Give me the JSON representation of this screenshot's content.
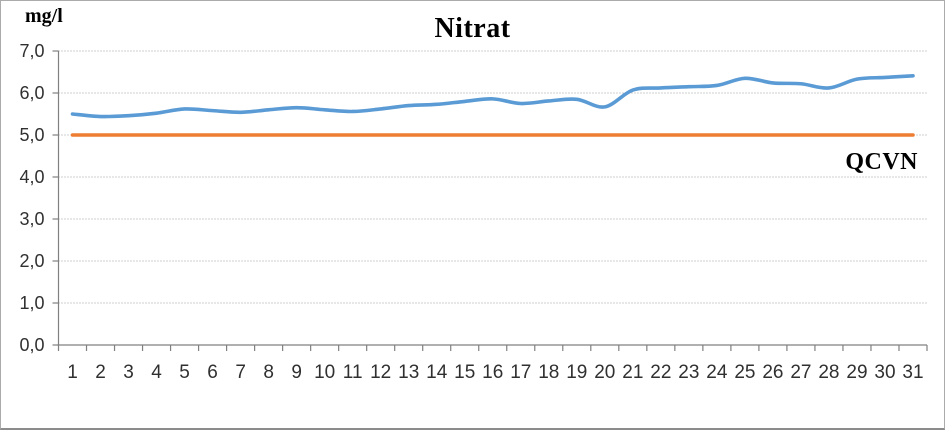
{
  "labels": {
    "title": "Nitrat",
    "y_axis_unit": "mg/l",
    "limit_label": "QCVN"
  },
  "colors": {
    "series_line": "#5B9BD5",
    "limit_line": "#ED7D31",
    "gridline": "#9e9e9e",
    "axis": "#808080",
    "tick_text": "#303030"
  },
  "chart_data": {
    "type": "line",
    "title": "Nitrat",
    "xlabel": "",
    "ylabel": "mg/l",
    "ylim": [
      0,
      7
    ],
    "ytick_step": 1,
    "ytick_labels": [
      "0,0",
      "1,0",
      "2,0",
      "3,0",
      "4,0",
      "5,0",
      "6,0",
      "7,0"
    ],
    "grid": true,
    "legend": "none",
    "x": [
      1,
      2,
      3,
      4,
      5,
      6,
      7,
      8,
      9,
      10,
      11,
      12,
      13,
      14,
      15,
      16,
      17,
      18,
      19,
      20,
      21,
      22,
      23,
      24,
      25,
      26,
      27,
      28,
      29,
      30,
      31
    ],
    "series": [
      {
        "name": "Nitrat",
        "color": "#5B9BD5",
        "smooth": true,
        "values": [
          5.5,
          5.44,
          5.46,
          5.52,
          5.62,
          5.58,
          5.54,
          5.6,
          5.65,
          5.6,
          5.56,
          5.62,
          5.7,
          5.73,
          5.8,
          5.86,
          5.75,
          5.81,
          5.85,
          5.67,
          6.07,
          6.12,
          6.15,
          6.18,
          6.35,
          6.24,
          6.22,
          6.12,
          6.33,
          6.37,
          6.41
        ]
      },
      {
        "name": "QCVN",
        "color": "#ED7D31",
        "smooth": false,
        "constant": 5.0
      }
    ],
    "annotations": [
      {
        "text": "QCVN",
        "attached_to_series": "QCVN"
      }
    ]
  }
}
